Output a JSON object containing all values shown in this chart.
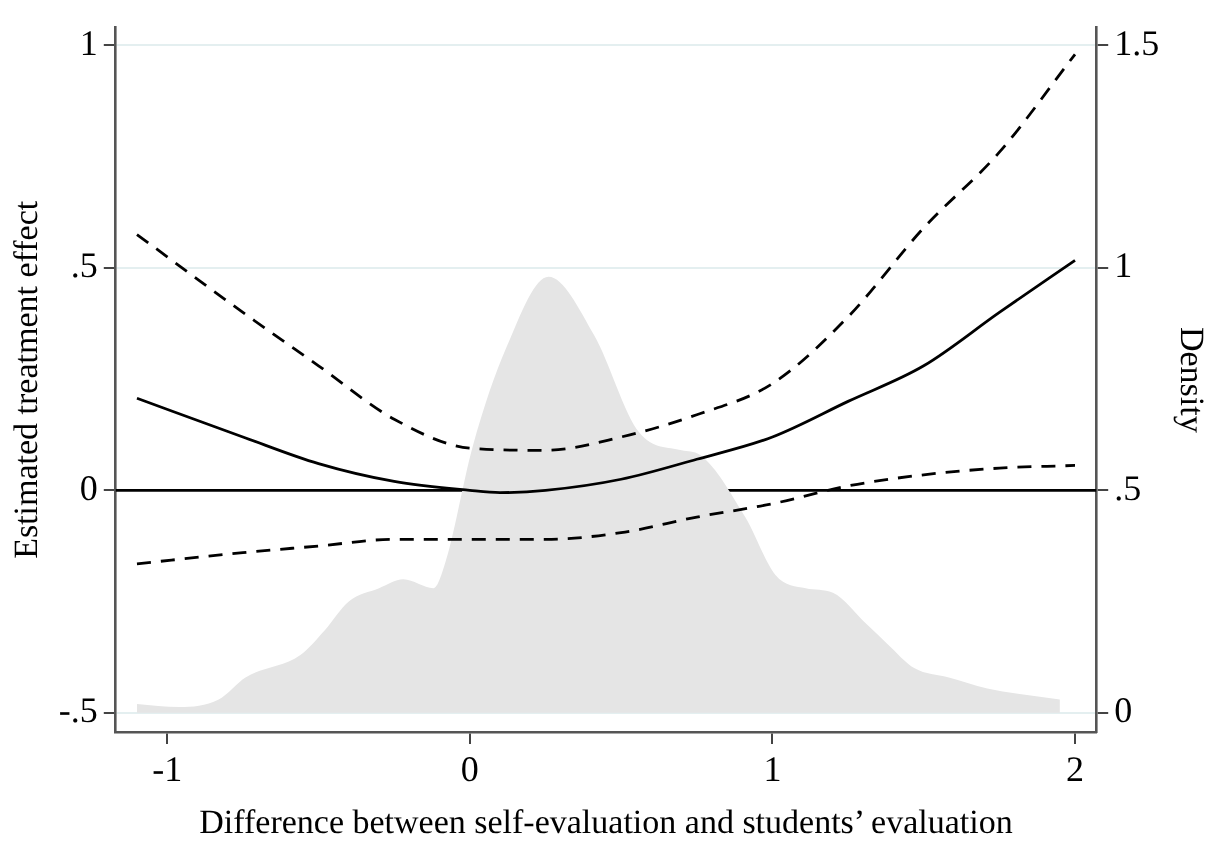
{
  "chart_data": {
    "type": "line",
    "xlabel": "Difference between self-evaluation and students’ evaluation",
    "ylabel": "Estimated treatment effect",
    "y2label": "Density",
    "xlim": [
      -1.17,
      2.07
    ],
    "xticks": [
      -1,
      0,
      1,
      2
    ],
    "ylim": [
      -0.543,
      1.04
    ],
    "yticks": [
      {
        "value": -0.5,
        "label": "-.5"
      },
      0,
      {
        "value": 0.5,
        "label": ".5"
      },
      1
    ],
    "y2lim": [
      -0.043,
      1.54
    ],
    "y2ticks": [
      0,
      {
        "value": 0.5,
        "label": ".5"
      },
      1,
      1.5
    ],
    "grid": "y",
    "ref_lines": [
      {
        "axis": "y",
        "value": 0,
        "color": "#000000"
      }
    ],
    "series": [
      {
        "type": "area",
        "axis": "y2",
        "color": "#e5e5e5",
        "x": [
          -1.1,
          -0.96,
          -0.83,
          -0.74,
          -0.56,
          -0.48,
          -0.4,
          -0.3,
          -0.22,
          -0.12,
          -0.08,
          0.01,
          0.12,
          0.26,
          0.41,
          0.56,
          0.7,
          0.76,
          0.91,
          1.01,
          1.11,
          1.2,
          1.31,
          1.38,
          1.47,
          1.58,
          1.71,
          1.95
        ],
        "values": [
          0.02,
          0.013,
          0.03,
          0.08,
          0.13,
          0.185,
          0.25,
          0.28,
          0.3,
          0.28,
          0.34,
          0.6,
          0.82,
          0.98,
          0.85,
          0.63,
          0.59,
          0.58,
          0.44,
          0.31,
          0.28,
          0.27,
          0.2,
          0.155,
          0.1,
          0.08,
          0.055,
          0.03
        ]
      },
      {
        "type": "line",
        "color": "#000000",
        "line_style": "dashed",
        "x": [
          -1.1,
          -0.75,
          -0.5,
          -0.25,
          0,
          0.25,
          0.5,
          0.75,
          1,
          1.25,
          1.5,
          1.75,
          2
        ],
        "values": [
          0.575,
          0.4,
          0.28,
          0.16,
          0.095,
          0.09,
          0.12,
          0.17,
          0.24,
          0.39,
          0.59,
          0.76,
          0.98
        ]
      },
      {
        "type": "line",
        "color": "#000000",
        "line_style": "solid",
        "x": [
          -1.1,
          -0.75,
          -0.5,
          -0.25,
          0,
          0.1,
          0.25,
          0.5,
          0.75,
          1,
          1.25,
          1.5,
          1.75,
          2
        ],
        "values": [
          0.207,
          0.12,
          0.06,
          0.02,
          0.0,
          -0.005,
          0.0,
          0.025,
          0.07,
          0.12,
          0.2,
          0.28,
          0.4,
          0.517
        ]
      },
      {
        "type": "line",
        "color": "#000000",
        "line_style": "dashed",
        "x": [
          -1.1,
          -0.75,
          -0.5,
          -0.25,
          0,
          0.25,
          0.5,
          0.75,
          1,
          1.25,
          1.5,
          1.75,
          2
        ],
        "values": [
          -0.165,
          -0.14,
          -0.125,
          -0.11,
          -0.11,
          -0.11,
          -0.095,
          -0.06,
          -0.03,
          0.01,
          0.035,
          0.05,
          0.056
        ]
      }
    ]
  }
}
